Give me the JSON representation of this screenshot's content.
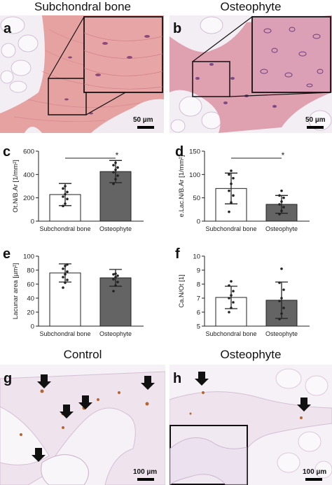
{
  "headers": {
    "a": "Subchondral bone",
    "b": "Osteophyte",
    "g": "Control",
    "h": "Osteophyte"
  },
  "panel_labels": {
    "a": "a",
    "b": "b",
    "c": "c",
    "d": "d",
    "e": "e",
    "f": "f",
    "g": "g",
    "h": "h"
  },
  "scale_bars": {
    "a": "50 µm",
    "b": "50 µm",
    "g": "100 µm",
    "h": "100 µm"
  },
  "colors": {
    "bone": "#e6a1a1",
    "bone_dark": "#d68a8f",
    "background": "#f3eef3",
    "fat": "#fbf8fb",
    "stroma": "#b08fbf",
    "ihc_bone": "#efe4ee",
    "ihc_cell": "#b5652e",
    "open_bar": "#ffffff",
    "filled_bar": "#646464"
  },
  "chart_data": [
    {
      "panel": "c",
      "type": "bar",
      "categories": [
        "Subchondral bone",
        "Osteophyte"
      ],
      "values": [
        228,
        425
      ],
      "errors": [
        95,
        95
      ],
      "ylabel": "Ot.N/B.Ar [1/mm²]",
      "ylim": [
        0,
        600
      ],
      "yticks": [
        0,
        200,
        400,
        600
      ],
      "fills": [
        "#ffffff",
        "#646464"
      ],
      "points": [
        [
          130,
          150,
          190,
          210,
          230,
          250,
          280,
          300
        ],
        [
          320,
          360,
          390,
          420,
          440,
          460,
          480,
          500
        ]
      ],
      "significance": "*"
    },
    {
      "panel": "d",
      "type": "bar",
      "categories": [
        "Subchondral bone",
        "Osteophyte"
      ],
      "values": [
        70,
        36
      ],
      "errors": [
        33,
        19
      ],
      "ylabel": "e.Lac.N/B.Ar [1/mm²]",
      "ylim": [
        0,
        150
      ],
      "yticks": [
        0,
        50,
        100,
        150
      ],
      "fills": [
        "#ffffff",
        "#646464"
      ],
      "points": [
        [
          20,
          40,
          55,
          65,
          80,
          92,
          100,
          108
        ],
        [
          15,
          22,
          30,
          36,
          42,
          50,
          55,
          65
        ]
      ],
      "significance": "*"
    },
    {
      "panel": "e",
      "type": "bar",
      "categories": [
        "Subchondral bone",
        "Osteophyte"
      ],
      "values": [
        76,
        69
      ],
      "errors": [
        13,
        12
      ],
      "ylabel": "Lacunar area [µm²]",
      "ylim": [
        0,
        100
      ],
      "yticks": [
        0,
        20,
        40,
        60,
        80,
        100
      ],
      "fills": [
        "#ffffff",
        "#646464"
      ],
      "points": [
        [
          55,
          62,
          66,
          70,
          74,
          78,
          82,
          86,
          88
        ],
        [
          50,
          58,
          63,
          67,
          70,
          72,
          74,
          75
        ]
      ]
    },
    {
      "panel": "f",
      "type": "bar",
      "categories": [
        "Subchondral bone",
        "Osteophyte"
      ],
      "values": [
        7.05,
        6.85
      ],
      "errors": [
        0.8,
        1.3
      ],
      "ylabel": "Ca.N/Ot [1]",
      "ylim": [
        5,
        10
      ],
      "yticks": [
        5,
        6,
        7,
        8,
        9,
        10
      ],
      "fills": [
        "#ffffff",
        "#646464"
      ],
      "points": [
        [
          6.0,
          6.3,
          6.7,
          7.0,
          7.2,
          7.5,
          7.9,
          8.2
        ],
        [
          5.5,
          5.9,
          6.3,
          6.8,
          7.0,
          7.6,
          8.1,
          9.1
        ]
      ]
    }
  ]
}
